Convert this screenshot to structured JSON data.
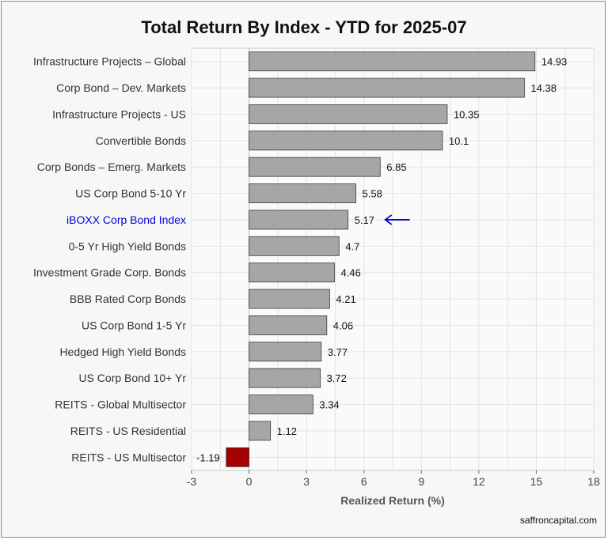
{
  "title": "Total Return By Index - YTD for 2025-07",
  "credit": "saffroncapital.com",
  "chart_data": {
    "type": "bar",
    "orientation": "horizontal",
    "title": "Total Return By Index - YTD for 2025-07",
    "xlabel": "Realized Return (%)",
    "ylabel": "",
    "xlim": [
      -3,
      18
    ],
    "xticks": [
      -3,
      0,
      3,
      6,
      9,
      12,
      15,
      18
    ],
    "grid": true,
    "categories": [
      "Infrastructure Projects – Global",
      "Corp Bond – Dev. Markets",
      "Infrastructure Projects - US",
      "Convertible Bonds",
      "Corp Bonds – Emerg. Markets",
      "US Corp Bond 5-10 Yr",
      "iBOXX Corp Bond Index",
      "0-5 Yr High Yield Bonds",
      "Investment Grade Corp. Bonds",
      "BBB Rated Corp Bonds",
      "US Corp Bond 1-5 Yr",
      "Hedged High Yield Bonds",
      "US Corp Bond 10+ Yr",
      "REITS - Global Multisector",
      "REITS - US Residential",
      "REITS - US Multisector"
    ],
    "values": [
      14.93,
      14.38,
      10.35,
      10.1,
      6.85,
      5.58,
      5.17,
      4.7,
      4.46,
      4.21,
      4.06,
      3.77,
      3.72,
      3.34,
      1.12,
      -1.19
    ],
    "value_labels": [
      "14.93",
      "14.38",
      "10.35",
      "10.1",
      "6.85",
      "5.58",
      "5.17",
      "4.7",
      "4.46",
      "4.21",
      "4.06",
      "3.77",
      "3.72",
      "3.34",
      "1.12",
      "-1.19"
    ],
    "highlighted_category": "iBOXX Corp Bond Index",
    "colors": {
      "positive_bar": "#a6a6a6",
      "negative_bar": "#a50000",
      "highlight_text": "#0000d8",
      "arrow": "#0000d8",
      "grid": "#e3e3e3",
      "panel": "#fafafa"
    }
  }
}
